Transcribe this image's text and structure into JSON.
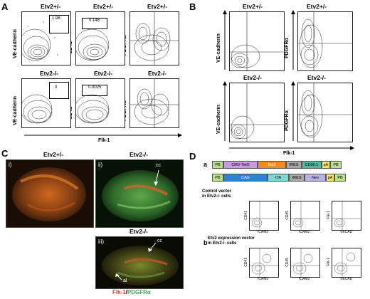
{
  "panels": {
    "A": "A",
    "B": "B",
    "C": "C",
    "D": "D"
  },
  "panelA": {
    "row1_genotype": "Etv2+/-",
    "row2_genotype": "Etv2-/-",
    "y_labels": [
      "VE-cadherin",
      "CD41",
      "PDGFRα"
    ],
    "x_label": "Flk-1",
    "gate_values": {
      "het_ve": "1.98",
      "het_cd41": "0.148",
      "ko_ve": "0",
      "ko_cd41": "0.0025"
    }
  },
  "panelB": {
    "col1_genotype": "Etv2+/-",
    "col2_genotype": "Etv2+/-",
    "col3_genotype": "Etv2-/-",
    "col4_genotype": "Etv2-/-",
    "y_labels": [
      "VE-cadherin",
      "PDGFRα"
    ],
    "x_label": "Flk-1"
  },
  "panelC": {
    "title_i": "Etv2+/-",
    "title_ii": "Etv2-/-",
    "title_iii": "Etv2-/-",
    "roman_i": "i)",
    "roman_ii": "ii)",
    "roman_iii": "iii)",
    "cc": "cc",
    "al": "al",
    "legend_flk": "Flk-1",
    "legend_sep": "/",
    "legend_pdgfr": "PDGFRα"
  },
  "panelD": {
    "a_label": "a",
    "b_label": "b",
    "vector1": [
      "PB",
      "CMV-TetO",
      "Etv2",
      "IRES",
      "CD90.1",
      "pA",
      "PB"
    ],
    "vector2": [
      "PB",
      "CAG",
      "tTA",
      "IRES",
      "Neo",
      "pA",
      "PB"
    ],
    "control_text_1": "Control vector",
    "control_text_2": "in Etv2-/- cells",
    "expr_text_1": "Etv2 expression vector",
    "expr_text_2": "in Etv2-/- cells",
    "plot_x": [
      "ICAM2",
      "ICAM2",
      "VECAD"
    ],
    "plot_y": [
      "CD41",
      "CD45",
      "Flk-1"
    ]
  },
  "colors": {
    "green": "#3fa34d",
    "red": "#d9413a",
    "purple": "#c79be0",
    "orange": "#f08c1e",
    "grey": "#a7a7a7",
    "teal": "#53b89e",
    "yellow": "#f4e36b",
    "lightgreen": "#b8e08e",
    "blue": "#2d7fe0",
    "aqua": "#7fd8d0",
    "lavender": "#b9b2e6"
  }
}
